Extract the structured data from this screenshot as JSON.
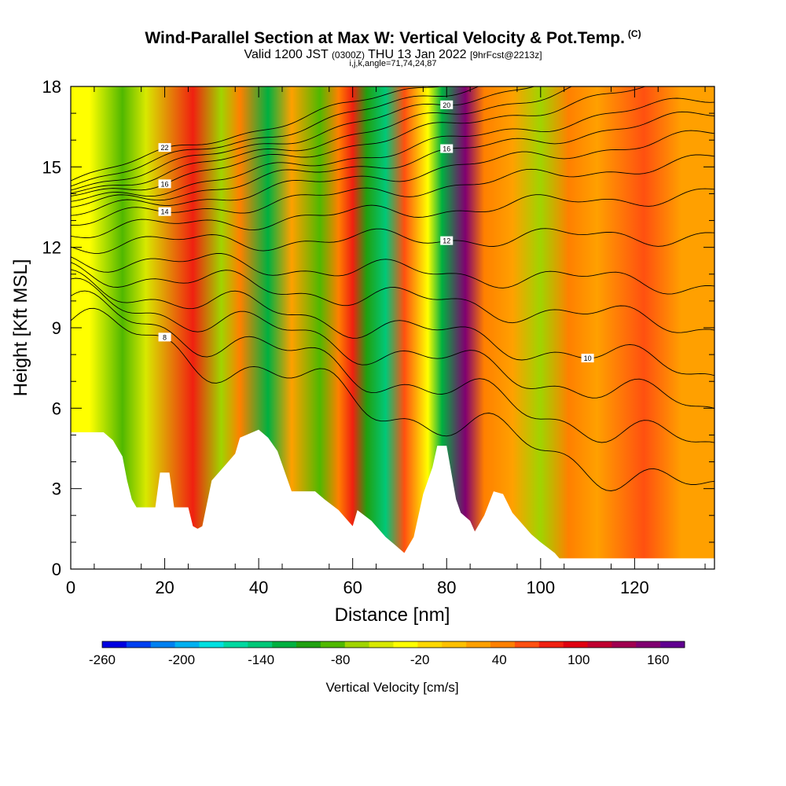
{
  "header": {
    "title": "Wind-Parallel Section at Max W: Vertical Velocity & Pot.Temp.",
    "copyright_mark": "(C)",
    "valid_prefix": "Valid 1200 JST",
    "valid_utc": "(0300Z)",
    "valid_date": "THU 13 Jan 2022",
    "forecast_info": "[9hrFcst@2213z]",
    "params": "i,j,k,angle=71,74,24,87"
  },
  "chart_data": {
    "type": "heatmap",
    "title": "Wind-Parallel Section at Max W: Vertical Velocity & Pot.Temp.",
    "xlabel": "Distance [nm]",
    "ylabel": "Height [Kft MSL]",
    "xlim": [
      0,
      137
    ],
    "ylim": [
      0,
      18
    ],
    "x_ticks": [
      0,
      20,
      40,
      60,
      80,
      100,
      120
    ],
    "y_ticks": [
      0,
      3,
      6,
      9,
      12,
      15,
      18
    ],
    "colorbar": {
      "label": "Vertical Velocity [cm/s]",
      "tick_values": [
        -260,
        -200,
        -140,
        -80,
        -20,
        40,
        100,
        160
      ],
      "range": [
        -260,
        180
      ],
      "colors": [
        "#0000e0",
        "#0040f0",
        "#0080f0",
        "#00b0f0",
        "#00e0e0",
        "#00d8a0",
        "#00c878",
        "#00b040",
        "#20a010",
        "#50b800",
        "#a0d400",
        "#d8e800",
        "#ffff00",
        "#ffd800",
        "#ffc000",
        "#ffa000",
        "#ff8000",
        "#ff5010",
        "#f02010",
        "#e00010",
        "#c00030",
        "#a00050",
        "#800070",
        "#600090"
      ]
    },
    "w_field": {
      "units": "cm/s",
      "bands": [
        {
          "x": 4,
          "w": -30
        },
        {
          "x": 11,
          "w": -90
        },
        {
          "x": 16,
          "w": -50
        },
        {
          "x": 26,
          "w": 80
        },
        {
          "x": 32,
          "w": -60
        },
        {
          "x": 36,
          "w": 40
        },
        {
          "x": 42,
          "w": -130
        },
        {
          "x": 47,
          "w": 30
        },
        {
          "x": 53,
          "w": -80
        },
        {
          "x": 57,
          "w": 40
        },
        {
          "x": 60,
          "w": 70
        },
        {
          "x": 63,
          "w": -100
        },
        {
          "x": 67,
          "w": -150
        },
        {
          "x": 71,
          "w": 60
        },
        {
          "x": 76,
          "w": -40
        },
        {
          "x": 79,
          "w": -120
        },
        {
          "x": 84,
          "w": 150
        },
        {
          "x": 88,
          "w": 50
        },
        {
          "x": 94,
          "w": 30
        },
        {
          "x": 100,
          "w": -70
        },
        {
          "x": 106,
          "w": 40
        },
        {
          "x": 112,
          "w": 25
        },
        {
          "x": 122,
          "w": 60
        },
        {
          "x": 130,
          "w": 20
        },
        {
          "x": 136,
          "w": 30
        }
      ]
    },
    "terrain_kft": [
      [
        0,
        5.1
      ],
      [
        7,
        5.1
      ],
      [
        9,
        4.8
      ],
      [
        11,
        4.2
      ],
      [
        12,
        3.3
      ],
      [
        13,
        2.6
      ],
      [
        14,
        2.3
      ],
      [
        18,
        2.3
      ],
      [
        19,
        3.6
      ],
      [
        21,
        3.6
      ],
      [
        22,
        2.3
      ],
      [
        25,
        2.3
      ],
      [
        26,
        1.6
      ],
      [
        27,
        1.5
      ],
      [
        28,
        1.6
      ],
      [
        30,
        3.3
      ],
      [
        33,
        3.9
      ],
      [
        35,
        4.3
      ],
      [
        36,
        4.9
      ],
      [
        40,
        5.2
      ],
      [
        42,
        4.9
      ],
      [
        44,
        4.4
      ],
      [
        46,
        3.4
      ],
      [
        47,
        2.9
      ],
      [
        52,
        2.9
      ],
      [
        54,
        2.6
      ],
      [
        57,
        2.2
      ],
      [
        59,
        1.8
      ],
      [
        60,
        1.6
      ],
      [
        61,
        2.2
      ],
      [
        64,
        1.8
      ],
      [
        67,
        1.2
      ],
      [
        69,
        0.9
      ],
      [
        71,
        0.6
      ],
      [
        73,
        1.2
      ],
      [
        75,
        2.8
      ],
      [
        77,
        3.8
      ],
      [
        78,
        4.6
      ],
      [
        80,
        4.6
      ],
      [
        81,
        3.6
      ],
      [
        82,
        2.6
      ],
      [
        83,
        2.1
      ],
      [
        85,
        1.8
      ],
      [
        86,
        1.4
      ],
      [
        88,
        2.0
      ],
      [
        90,
        2.9
      ],
      [
        92,
        2.8
      ],
      [
        94,
        2.1
      ],
      [
        96,
        1.7
      ],
      [
        98,
        1.3
      ],
      [
        100,
        1.0
      ],
      [
        103,
        0.6
      ],
      [
        104,
        0.4
      ],
      [
        108,
        0.4
      ],
      [
        137,
        0.4
      ]
    ],
    "theta_contours_C": [
      {
        "base_kft": 6.0,
        "label": "8"
      },
      {
        "base_kft": 7.1,
        "label": ""
      },
      {
        "base_kft": 8.1,
        "label": ""
      },
      {
        "base_kft": 9.0,
        "label": "10"
      },
      {
        "base_kft": 10.1,
        "label": ""
      },
      {
        "base_kft": 11.1,
        "label": ""
      },
      {
        "base_kft": 12.3,
        "label": "12"
      },
      {
        "base_kft": 13.3,
        "label": ""
      },
      {
        "base_kft": 14.1,
        "label": "14"
      },
      {
        "base_kft": 14.7,
        "label": ""
      },
      {
        "base_kft": 15.2,
        "label": "16"
      },
      {
        "base_kft": 15.6,
        "label": ""
      },
      {
        "base_kft": 16.1,
        "label": "16"
      },
      {
        "base_kft": 16.5,
        "label": ""
      },
      {
        "base_kft": 16.9,
        "label": "20"
      },
      {
        "base_kft": 17.3,
        "label": ""
      },
      {
        "base_kft": 17.7,
        "label": "22"
      }
    ]
  }
}
